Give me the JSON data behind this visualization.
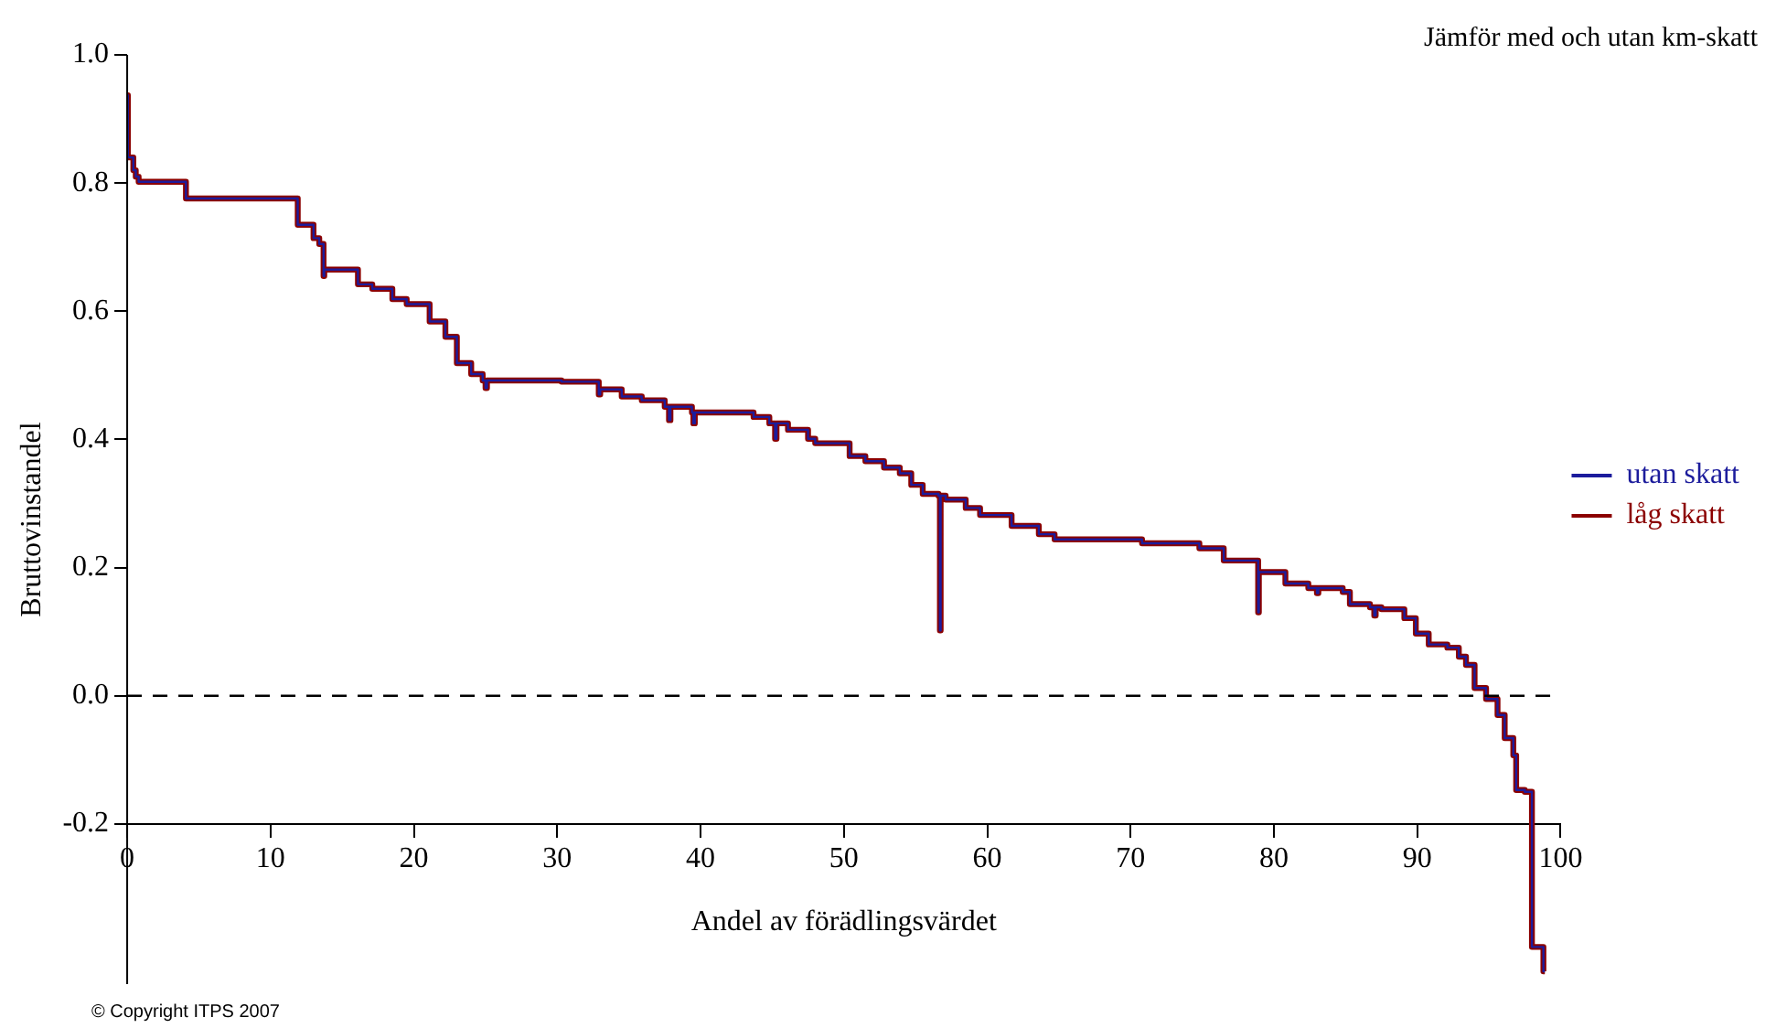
{
  "chart_data": {
    "type": "step",
    "title": "Jämför med och utan km-skatt",
    "xlabel": "Andel av förädlingsvärdet",
    "ylabel": "Bruttovinstandel",
    "x": [
      0,
      0.05,
      0.43,
      0.6,
      0.8,
      4.1,
      11.9,
      13.0,
      13.4,
      13.7,
      13.75,
      13.8,
      16.1,
      17.1,
      18.5,
      19.5,
      21.1,
      22.2,
      23.0,
      24.0,
      24.8,
      25.0,
      25.1,
      30.3,
      32.9,
      33.0,
      33.1,
      34.5,
      35.9,
      37.5,
      37.8,
      37.9,
      39.4,
      39.5,
      39.6,
      43.7,
      44.8,
      45.2,
      45.3,
      46.1,
      47.5,
      48.0,
      50.4,
      51.5,
      52.8,
      53.9,
      54.7,
      55.5,
      56.6,
      56.7,
      56.75,
      57.1,
      58.5,
      59.5,
      61.7,
      63.6,
      64.7,
      70.8,
      74.8,
      76.5,
      78.9,
      78.95,
      79.0,
      80.8,
      82.4,
      83.0,
      83.1,
      84.8,
      85.3,
      86.7,
      87.0,
      87.1,
      87.5,
      89.1,
      89.9,
      90.8,
      92.1,
      92.9,
      93.4,
      94.0,
      94.8,
      95.6,
      96.1,
      96.7,
      96.9,
      97.5,
      98.0,
      98.8,
      98.9
    ],
    "series": [
      {
        "name": "utan skatt",
        "color": "#1c1c9c",
        "values": [
          0.937,
          0.84,
          0.82,
          0.81,
          0.802,
          0.776,
          0.735,
          0.714,
          0.705,
          0.655,
          0.665,
          0.665,
          0.642,
          0.635,
          0.619,
          0.611,
          0.584,
          0.56,
          0.519,
          0.502,
          0.492,
          0.48,
          0.492,
          0.49,
          0.47,
          0.478,
          0.478,
          0.467,
          0.461,
          0.451,
          0.43,
          0.451,
          0.442,
          0.425,
          0.442,
          0.435,
          0.425,
          0.401,
          0.425,
          0.415,
          0.401,
          0.394,
          0.374,
          0.366,
          0.356,
          0.347,
          0.329,
          0.315,
          0.312,
          0.102,
          0.312,
          0.306,
          0.293,
          0.282,
          0.265,
          0.252,
          0.244,
          0.238,
          0.23,
          0.211,
          0.13,
          0.193,
          0.193,
          0.175,
          0.168,
          0.16,
          0.168,
          0.162,
          0.143,
          0.138,
          0.125,
          0.138,
          0.135,
          0.121,
          0.097,
          0.08,
          0.075,
          0.061,
          0.048,
          0.012,
          -0.005,
          -0.03,
          -0.066,
          -0.093,
          -0.147,
          -0.15,
          -0.392,
          -0.43,
          -0.43
        ]
      },
      {
        "name": "låg skatt",
        "color": "#8b0000",
        "values": [
          0.937,
          0.84,
          0.82,
          0.81,
          0.802,
          0.776,
          0.735,
          0.714,
          0.705,
          0.655,
          0.665,
          0.665,
          0.642,
          0.635,
          0.619,
          0.611,
          0.584,
          0.56,
          0.519,
          0.502,
          0.492,
          0.48,
          0.492,
          0.49,
          0.47,
          0.478,
          0.478,
          0.467,
          0.461,
          0.451,
          0.43,
          0.451,
          0.442,
          0.425,
          0.442,
          0.435,
          0.425,
          0.401,
          0.425,
          0.415,
          0.401,
          0.394,
          0.374,
          0.366,
          0.356,
          0.347,
          0.329,
          0.315,
          0.312,
          0.102,
          0.312,
          0.306,
          0.293,
          0.282,
          0.265,
          0.252,
          0.244,
          0.238,
          0.23,
          0.211,
          0.13,
          0.193,
          0.193,
          0.175,
          0.168,
          0.16,
          0.168,
          0.162,
          0.143,
          0.138,
          0.125,
          0.138,
          0.135,
          0.121,
          0.097,
          0.08,
          0.075,
          0.061,
          0.048,
          0.012,
          -0.005,
          -0.03,
          -0.066,
          -0.093,
          -0.147,
          -0.15,
          -0.392,
          -0.43,
          -0.43
        ]
      }
    ],
    "xlim": [
      0,
      100
    ],
    "xticks": [
      0,
      10,
      20,
      30,
      40,
      50,
      60,
      70,
      80,
      90,
      100
    ],
    "ylim": [
      -0.45,
      1.0
    ],
    "yticks": [
      {
        "value": -0.2,
        "label": "-0.2"
      },
      {
        "value": 0,
        "label": "0.0"
      },
      {
        "value": 0.2,
        "label": "0.2"
      },
      {
        "value": 0.4,
        "label": "0.4"
      },
      {
        "value": 0.6,
        "label": "0.6"
      },
      {
        "value": 0.8,
        "label": "0.8"
      },
      {
        "value": 1.0,
        "label": "1.0"
      }
    ],
    "ref_lines": [
      {
        "axis": "y",
        "value": 0,
        "color": "#000000",
        "line_style": "dashed"
      }
    ],
    "legend": "right",
    "grid": false,
    "marker": "none",
    "annotations": [
      "© Copyright ITPS 2007"
    ]
  }
}
